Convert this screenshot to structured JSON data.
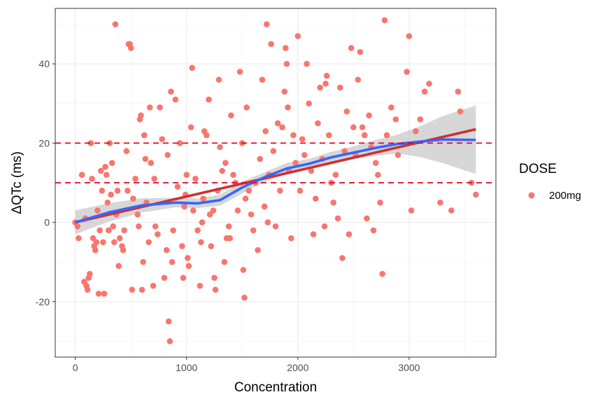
{
  "chart_data": {
    "type": "scatter",
    "title": "",
    "xlabel": "Concentration",
    "ylabel": "ΔQTc (ms)",
    "xlim": [
      -180,
      3780
    ],
    "ylim": [
      -34,
      54
    ],
    "x_ticks": [
      0,
      1000,
      2000,
      3000
    ],
    "y_ticks": [
      -20,
      0,
      20,
      40
    ],
    "x_tick_labels": [
      "0",
      "1000",
      "2000",
      "3000"
    ],
    "y_tick_labels": [
      "-20",
      "0",
      "20",
      "40"
    ],
    "grid": true,
    "legend": {
      "title": "DOSE",
      "position": "right",
      "entries": [
        "200mg"
      ]
    },
    "colors": {
      "points": "#F8766D",
      "linear_fit": "#D32F2F",
      "smooth_fit": "#3366FF",
      "ci_band": "#BDBDBD",
      "reference_lines": "#E8001C"
    },
    "reference_lines": [
      10,
      20
    ],
    "series": [
      {
        "name": "200mg",
        "type": "scatter",
        "points": [
          [
            0,
            0
          ],
          [
            20,
            -1
          ],
          [
            30,
            -4
          ],
          [
            60,
            12
          ],
          [
            80,
            -15
          ],
          [
            90,
            1
          ],
          [
            100,
            -16
          ],
          [
            110,
            -17
          ],
          [
            120,
            -14
          ],
          [
            130,
            -13
          ],
          [
            140,
            20
          ],
          [
            150,
            11
          ],
          [
            160,
            -4
          ],
          [
            170,
            -6
          ],
          [
            180,
            -7
          ],
          [
            190,
            -5
          ],
          [
            200,
            3
          ],
          [
            210,
            -18
          ],
          [
            220,
            -2
          ],
          [
            230,
            13
          ],
          [
            240,
            8
          ],
          [
            250,
            -5
          ],
          [
            260,
            -18
          ],
          [
            270,
            14
          ],
          [
            280,
            12
          ],
          [
            290,
            5
          ],
          [
            300,
            -2
          ],
          [
            310,
            20
          ],
          [
            320,
            7
          ],
          [
            330,
            15
          ],
          [
            340,
            -1
          ],
          [
            350,
            -5
          ],
          [
            360,
            50
          ],
          [
            370,
            2
          ],
          [
            380,
            8
          ],
          [
            390,
            -11
          ],
          [
            400,
            -4
          ],
          [
            420,
            -6
          ],
          [
            430,
            -7
          ],
          [
            440,
            -2
          ],
          [
            460,
            18
          ],
          [
            470,
            8
          ],
          [
            480,
            45
          ],
          [
            490,
            45
          ],
          [
            500,
            44
          ],
          [
            510,
            -17
          ],
          [
            520,
            6
          ],
          [
            540,
            11
          ],
          [
            560,
            2
          ],
          [
            570,
            -1
          ],
          [
            580,
            26
          ],
          [
            590,
            27
          ],
          [
            600,
            -17
          ],
          [
            610,
            -10
          ],
          [
            620,
            22
          ],
          [
            630,
            16
          ],
          [
            640,
            5
          ],
          [
            660,
            -5
          ],
          [
            670,
            29
          ],
          [
            680,
            15
          ],
          [
            700,
            -16
          ],
          [
            710,
            11
          ],
          [
            720,
            -1
          ],
          [
            740,
            -3
          ],
          [
            760,
            29
          ],
          [
            780,
            21
          ],
          [
            800,
            -14
          ],
          [
            820,
            -7
          ],
          [
            830,
            17
          ],
          [
            840,
            -25
          ],
          [
            850,
            -30
          ],
          [
            860,
            33
          ],
          [
            870,
            -10
          ],
          [
            880,
            -2
          ],
          [
            900,
            31
          ],
          [
            920,
            9
          ],
          [
            940,
            20
          ],
          [
            960,
            -6
          ],
          [
            970,
            -14
          ],
          [
            980,
            4
          ],
          [
            990,
            7
          ],
          [
            1000,
            12
          ],
          [
            1010,
            -9
          ],
          [
            1020,
            -11
          ],
          [
            1040,
            24
          ],
          [
            1050,
            39
          ],
          [
            1060,
            3
          ],
          [
            1080,
            11
          ],
          [
            1100,
            -2
          ],
          [
            1120,
            -16
          ],
          [
            1130,
            -5
          ],
          [
            1140,
            0
          ],
          [
            1150,
            6
          ],
          [
            1160,
            23
          ],
          [
            1180,
            22
          ],
          [
            1200,
            31
          ],
          [
            1210,
            2
          ],
          [
            1220,
            -6
          ],
          [
            1240,
            3
          ],
          [
            1250,
            -14
          ],
          [
            1260,
            -17
          ],
          [
            1280,
            8
          ],
          [
            1290,
            36
          ],
          [
            1300,
            19
          ],
          [
            1320,
            13
          ],
          [
            1340,
            -10
          ],
          [
            1350,
            15
          ],
          [
            1360,
            -4
          ],
          [
            1380,
            -1
          ],
          [
            1390,
            -4
          ],
          [
            1400,
            27
          ],
          [
            1420,
            12
          ],
          [
            1440,
            10
          ],
          [
            1460,
            3
          ],
          [
            1480,
            38
          ],
          [
            1500,
            20
          ],
          [
            1510,
            -12
          ],
          [
            1520,
            -19
          ],
          [
            1530,
            6
          ],
          [
            1540,
            29
          ],
          [
            1560,
            8
          ],
          [
            1580,
            2
          ],
          [
            1600,
            -2
          ],
          [
            1620,
            10
          ],
          [
            1640,
            -7
          ],
          [
            1660,
            16
          ],
          [
            1680,
            36
          ],
          [
            1700,
            4
          ],
          [
            1710,
            23
          ],
          [
            1720,
            50
          ],
          [
            1730,
            0
          ],
          [
            1740,
            12
          ],
          [
            1760,
            45
          ],
          [
            1780,
            18
          ],
          [
            1800,
            -1
          ],
          [
            1820,
            25
          ],
          [
            1840,
            8
          ],
          [
            1860,
            24
          ],
          [
            1880,
            33
          ],
          [
            1890,
            44
          ],
          [
            1900,
            40
          ],
          [
            1910,
            29
          ],
          [
            1920,
            13
          ],
          [
            1940,
            -4
          ],
          [
            1960,
            22
          ],
          [
            1980,
            15
          ],
          [
            2000,
            47
          ],
          [
            2020,
            8
          ],
          [
            2040,
            21
          ],
          [
            2060,
            17
          ],
          [
            2080,
            40
          ],
          [
            2100,
            30
          ],
          [
            2120,
            13
          ],
          [
            2140,
            -3
          ],
          [
            2160,
            6
          ],
          [
            2180,
            25
          ],
          [
            2200,
            34
          ],
          [
            2220,
            16
          ],
          [
            2240,
            -1
          ],
          [
            2250,
            35
          ],
          [
            2260,
            37
          ],
          [
            2280,
            22
          ],
          [
            2300,
            10
          ],
          [
            2320,
            5
          ],
          [
            2340,
            12
          ],
          [
            2360,
            1
          ],
          [
            2380,
            34
          ],
          [
            2400,
            -9
          ],
          [
            2420,
            18
          ],
          [
            2440,
            28
          ],
          [
            2460,
            -3
          ],
          [
            2480,
            44
          ],
          [
            2500,
            24
          ],
          [
            2520,
            17
          ],
          [
            2540,
            36
          ],
          [
            2560,
            43
          ],
          [
            2580,
            24
          ],
          [
            2600,
            22
          ],
          [
            2620,
            1
          ],
          [
            2640,
            27
          ],
          [
            2660,
            19
          ],
          [
            2680,
            -2
          ],
          [
            2700,
            15
          ],
          [
            2720,
            12
          ],
          [
            2740,
            5
          ],
          [
            2760,
            -13
          ],
          [
            2780,
            51
          ],
          [
            2800,
            22
          ],
          [
            2840,
            29
          ],
          [
            2880,
            26
          ],
          [
            2900,
            17
          ],
          [
            2980,
            38
          ],
          [
            3000,
            47
          ],
          [
            3020,
            3
          ],
          [
            3060,
            23
          ],
          [
            3100,
            26
          ],
          [
            3140,
            33
          ],
          [
            3180,
            35
          ],
          [
            3280,
            5
          ],
          [
            3380,
            3
          ],
          [
            3440,
            33
          ],
          [
            3460,
            28
          ],
          [
            3560,
            10
          ],
          [
            3600,
            7
          ]
        ]
      },
      {
        "name": "linear fit",
        "type": "line",
        "x": [
          0,
          3600
        ],
        "y": [
          0,
          23.5
        ]
      },
      {
        "name": "smooth fit",
        "type": "line",
        "x": [
          0,
          300,
          600,
          900,
          1100,
          1300,
          1500,
          1700,
          1900,
          2100,
          2300,
          2500,
          2700,
          2900,
          3100,
          3300,
          3600
        ],
        "y": [
          0,
          2.5,
          4.3,
          5.0,
          4.8,
          5.6,
          8.8,
          11.4,
          13.6,
          14.8,
          16.4,
          17.6,
          18.8,
          19.8,
          20.4,
          20.9,
          20.8
        ],
        "ci_lower": [
          -3,
          0.2,
          2.5,
          3.8,
          3.6,
          4.2,
          7.3,
          10.2,
          12.2,
          13.6,
          15.0,
          16.0,
          16.8,
          17.4,
          16.5,
          15.0,
          12.2
        ],
        "ci_upper": [
          3,
          4.8,
          6.1,
          6.2,
          6.0,
          7.0,
          10.3,
          12.6,
          15.0,
          16.0,
          17.8,
          19.2,
          20.8,
          22.2,
          24.3,
          26.8,
          29.5
        ]
      }
    ]
  }
}
